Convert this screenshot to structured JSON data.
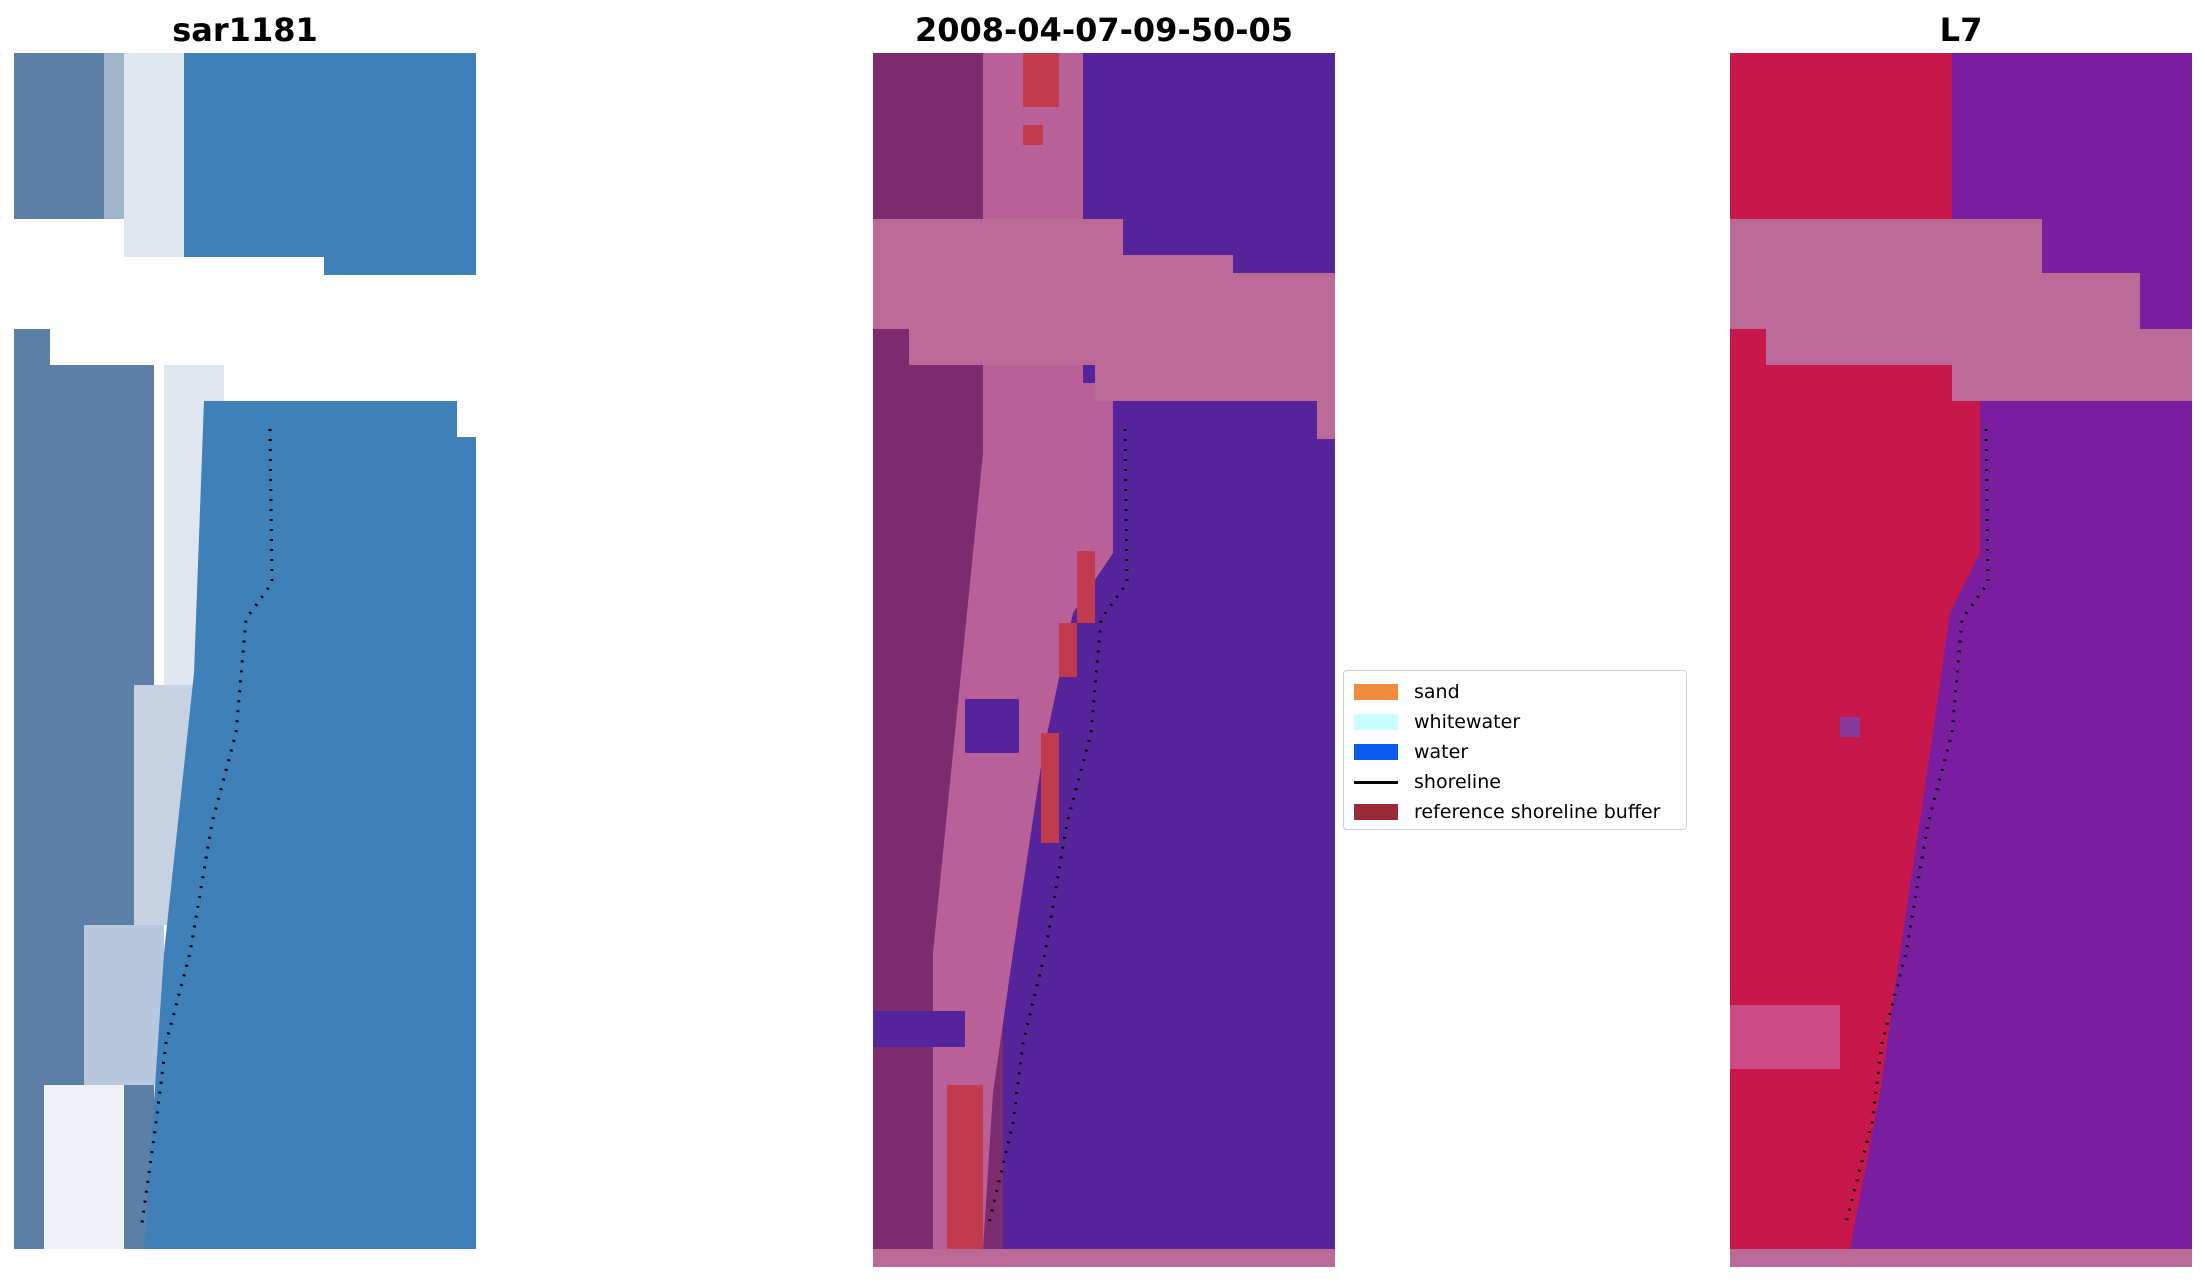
{
  "panels": [
    {
      "title": "sar1181"
    },
    {
      "title": "2008-04-07-09-50-05"
    },
    {
      "title": "L7"
    }
  ],
  "legend": [
    {
      "label": "sand",
      "color": "#f28c3f",
      "kind": "patch"
    },
    {
      "label": "whitewater",
      "color": "#c9fffc",
      "kind": "patch"
    },
    {
      "label": "water",
      "color": "#0a5cf0",
      "kind": "patch"
    },
    {
      "label": "shoreline",
      "color": "#000000",
      "kind": "line"
    },
    {
      "label": "reference shoreline buffer",
      "color": "#9a2a38",
      "kind": "patch"
    }
  ],
  "colors": {
    "rgb_land": "#5d7fa6",
    "rgb_beach": "#dfe6ef",
    "rgb_water": "#3f80b8",
    "class_land": "#7c2c6e",
    "class_beach": "#b86097",
    "class_buffer": "#c23a4e",
    "class_water": "#55249a",
    "class_nodata": "#bb6a98",
    "index_land": "#c8174a",
    "index_water": "#7a1ea0",
    "index_nodata": "#bb6a98"
  }
}
